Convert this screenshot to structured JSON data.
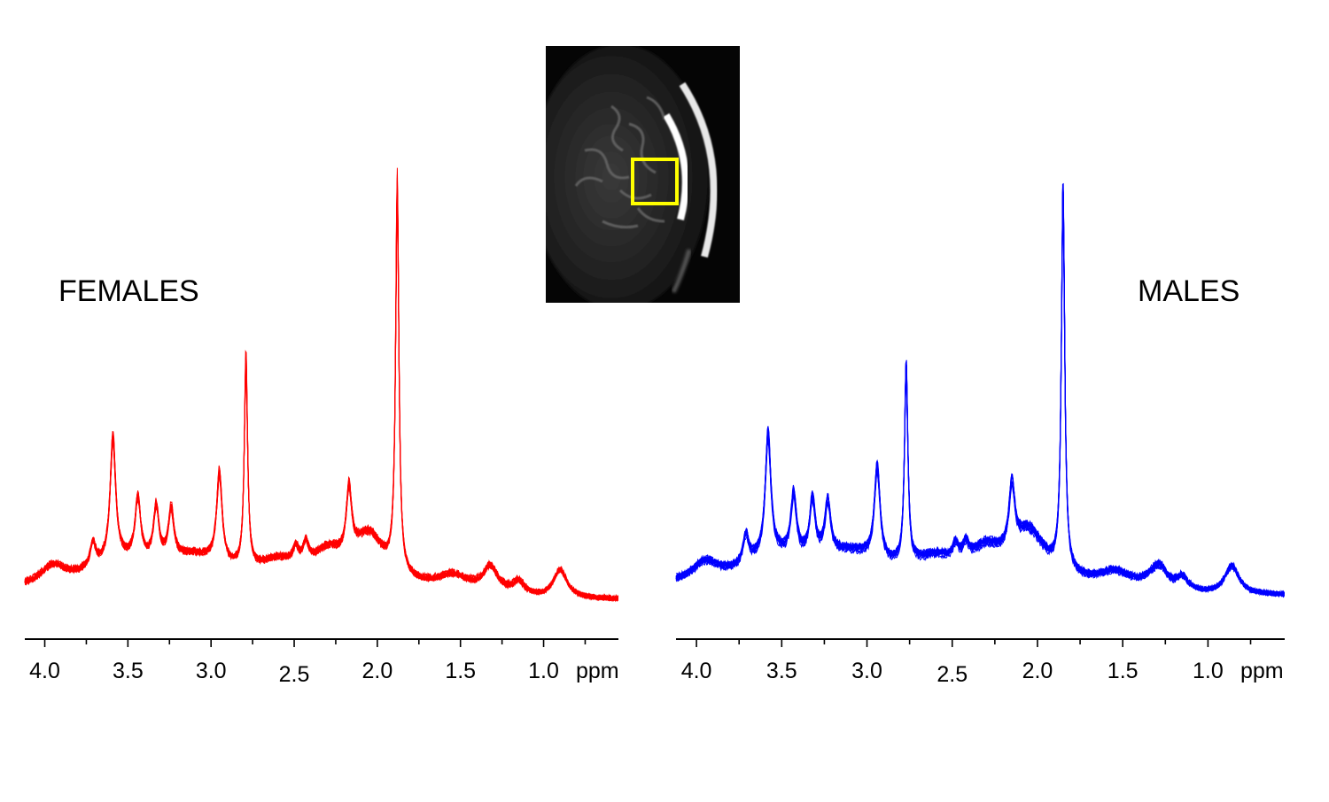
{
  "chart_data": [
    {
      "type": "line",
      "label": "FEMALES",
      "color": "#ff0000",
      "xlabel": "ppm",
      "x_reversed": true,
      "xlim": [
        4.12,
        0.55
      ],
      "tick_labels": [
        "4.0",
        "3.5",
        "3.0",
        "2.5",
        "2.0",
        "1.5",
        "1.0"
      ],
      "n_overlaid_spectra": 12,
      "peaks": [
        {
          "ppm": 3.71,
          "height": 0.12
        },
        {
          "ppm": 3.59,
          "height": 0.36
        },
        {
          "ppm": 3.44,
          "height": 0.21
        },
        {
          "ppm": 3.33,
          "height": 0.19
        },
        {
          "ppm": 3.24,
          "height": 0.18
        },
        {
          "ppm": 2.95,
          "height": 0.28
        },
        {
          "ppm": 2.79,
          "height": 0.57
        },
        {
          "ppm": 2.49,
          "height": 0.1
        },
        {
          "ppm": 2.43,
          "height": 0.11
        },
        {
          "ppm": 2.17,
          "height": 0.22
        },
        {
          "ppm": 1.88,
          "height": 1.0
        },
        {
          "ppm": 1.32,
          "height": 0.1
        },
        {
          "ppm": 0.9,
          "height": 0.13
        }
      ]
    },
    {
      "type": "line",
      "label": "MALES",
      "color": "#0000ff",
      "xlabel": "ppm",
      "x_reversed": true,
      "xlim": [
        4.12,
        0.55
      ],
      "tick_labels": [
        "4.0",
        "3.5",
        "3.0",
        "2.5",
        "2.0",
        "1.5",
        "1.0"
      ],
      "n_overlaid_spectra": 12,
      "peaks": [
        {
          "ppm": 3.71,
          "height": 0.13
        },
        {
          "ppm": 3.58,
          "height": 0.36
        },
        {
          "ppm": 3.43,
          "height": 0.21
        },
        {
          "ppm": 3.32,
          "height": 0.2
        },
        {
          "ppm": 3.23,
          "height": 0.19
        },
        {
          "ppm": 2.94,
          "height": 0.29
        },
        {
          "ppm": 2.77,
          "height": 0.55
        },
        {
          "ppm": 2.48,
          "height": 0.1
        },
        {
          "ppm": 2.42,
          "height": 0.1
        },
        {
          "ppm": 2.15,
          "height": 0.22
        },
        {
          "ppm": 1.85,
          "height": 1.0
        },
        {
          "ppm": 1.28,
          "height": 0.1
        },
        {
          "ppm": 0.86,
          "height": 0.13
        }
      ]
    }
  ],
  "inset": {
    "description_icon": "mri-brain-slice-icon",
    "roi_color": "#ffff00"
  }
}
